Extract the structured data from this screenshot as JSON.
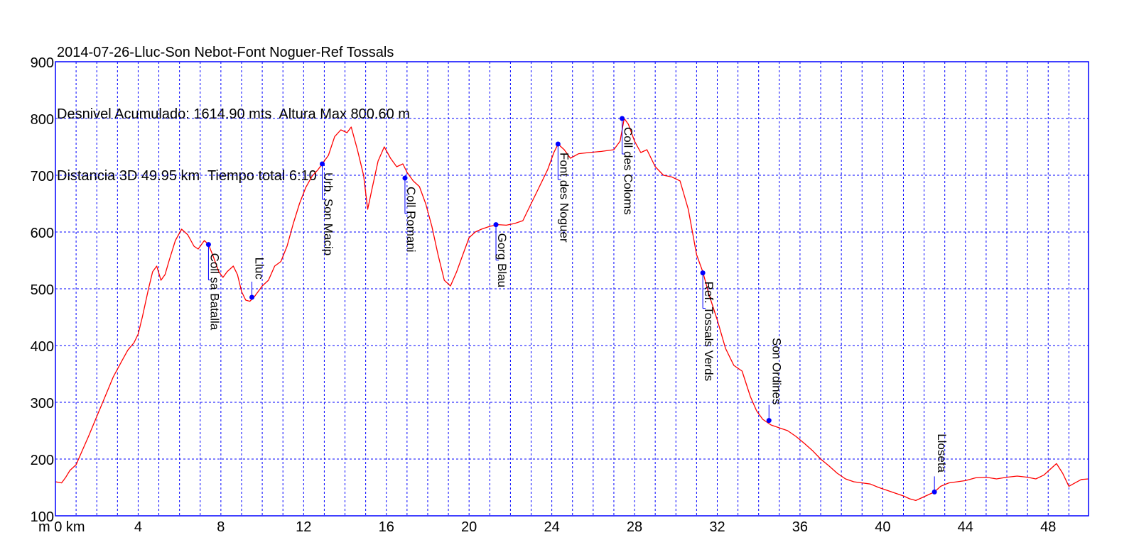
{
  "header": {
    "line1": "2014-07-26-Lluc-Son Nebot-Font Noguer-Ref Tossals",
    "line2": "Desnivel Acumulado: 1614.90 mts  Altura Max 800.60 m",
    "line3": "Distancia 3D 49.95 km  Tiempo total 6:10"
  },
  "colors": {
    "profile": "#ff0000",
    "frame": "#0000ff",
    "grid": "#0000ff",
    "waypoint": "#0000ff"
  },
  "chart_data": {
    "type": "line",
    "title": "2014-07-26-Lluc-Son Nebot-Font Noguer-Ref Tossals",
    "xlabel": "km",
    "ylabel": "m",
    "xlim": [
      0,
      49.95
    ],
    "ylim": [
      100,
      900
    ],
    "x_ticks": [
      0,
      4,
      8,
      12,
      16,
      20,
      24,
      28,
      32,
      36,
      40,
      44,
      48
    ],
    "x_tick_labels": [
      "m 0 km",
      "4",
      "8",
      "12",
      "16",
      "20",
      "24",
      "28",
      "32",
      "36",
      "40",
      "44",
      "48"
    ],
    "y_ticks": [
      100,
      200,
      300,
      400,
      500,
      600,
      700,
      800,
      900
    ],
    "grid_x_step": 1,
    "grid_y_step": 100,
    "grid": true,
    "series": [
      {
        "values_km_m": [
          [
            0,
            160
          ],
          [
            0.3,
            158
          ],
          [
            0.5,
            168
          ],
          [
            0.7,
            180
          ],
          [
            1.0,
            190
          ],
          [
            1.3,
            215
          ],
          [
            1.6,
            240
          ],
          [
            2.0,
            275
          ],
          [
            2.4,
            310
          ],
          [
            2.8,
            345
          ],
          [
            3.2,
            372
          ],
          [
            3.5,
            392
          ],
          [
            3.8,
            405
          ],
          [
            4.0,
            420
          ],
          [
            4.2,
            450
          ],
          [
            4.5,
            500
          ],
          [
            4.7,
            530
          ],
          [
            4.9,
            540
          ],
          [
            5.1,
            515
          ],
          [
            5.3,
            525
          ],
          [
            5.5,
            550
          ],
          [
            5.8,
            585
          ],
          [
            6.1,
            605
          ],
          [
            6.4,
            595
          ],
          [
            6.7,
            575
          ],
          [
            6.9,
            570
          ],
          [
            7.2,
            585
          ],
          [
            7.4,
            578
          ],
          [
            7.6,
            560
          ],
          [
            7.9,
            530
          ],
          [
            8.1,
            520
          ],
          [
            8.3,
            530
          ],
          [
            8.6,
            540
          ],
          [
            8.8,
            525
          ],
          [
            9.0,
            495
          ],
          [
            9.2,
            480
          ],
          [
            9.4,
            478
          ],
          [
            9.6,
            485
          ],
          [
            9.8,
            495
          ],
          [
            10.0,
            505
          ],
          [
            10.3,
            515
          ],
          [
            10.6,
            540
          ],
          [
            10.9,
            548
          ],
          [
            11.2,
            575
          ],
          [
            11.5,
            615
          ],
          [
            11.8,
            650
          ],
          [
            12.1,
            678
          ],
          [
            12.4,
            698
          ],
          [
            12.7,
            710
          ],
          [
            12.9,
            720
          ],
          [
            13.2,
            735
          ],
          [
            13.5,
            768
          ],
          [
            13.8,
            780
          ],
          [
            14.1,
            775
          ],
          [
            14.3,
            785
          ],
          [
            14.6,
            745
          ],
          [
            14.9,
            700
          ],
          [
            15.1,
            640
          ],
          [
            15.3,
            675
          ],
          [
            15.6,
            725
          ],
          [
            15.9,
            750
          ],
          [
            16.2,
            730
          ],
          [
            16.5,
            715
          ],
          [
            16.8,
            720
          ],
          [
            17.0,
            705
          ],
          [
            17.3,
            690
          ],
          [
            17.6,
            680
          ],
          [
            17.9,
            650
          ],
          [
            18.2,
            610
          ],
          [
            18.5,
            560
          ],
          [
            18.8,
            515
          ],
          [
            19.1,
            505
          ],
          [
            19.4,
            530
          ],
          [
            19.7,
            560
          ],
          [
            20.0,
            590
          ],
          [
            20.3,
            600
          ],
          [
            20.6,
            605
          ],
          [
            21.0,
            610
          ],
          [
            21.4,
            613
          ],
          [
            21.8,
            612
          ],
          [
            22.2,
            615
          ],
          [
            22.6,
            620
          ],
          [
            23.0,
            650
          ],
          [
            23.4,
            680
          ],
          [
            23.8,
            710
          ],
          [
            24.1,
            740
          ],
          [
            24.3,
            755
          ],
          [
            24.6,
            745
          ],
          [
            24.9,
            730
          ],
          [
            25.3,
            738
          ],
          [
            25.8,
            740
          ],
          [
            26.4,
            742
          ],
          [
            27.0,
            745
          ],
          [
            27.3,
            760
          ],
          [
            27.5,
            800
          ],
          [
            27.7,
            790
          ],
          [
            28.0,
            760
          ],
          [
            28.3,
            740
          ],
          [
            28.6,
            745
          ],
          [
            29.0,
            715
          ],
          [
            29.4,
            700
          ],
          [
            29.8,
            697
          ],
          [
            30.2,
            690
          ],
          [
            30.6,
            640
          ],
          [
            31.0,
            560
          ],
          [
            31.3,
            530
          ],
          [
            31.6,
            490
          ],
          [
            32.0,
            445
          ],
          [
            32.4,
            395
          ],
          [
            32.8,
            365
          ],
          [
            33.2,
            355
          ],
          [
            33.6,
            310
          ],
          [
            33.9,
            285
          ],
          [
            34.2,
            270
          ],
          [
            34.6,
            260
          ],
          [
            35.0,
            255
          ],
          [
            35.4,
            250
          ],
          [
            35.8,
            240
          ],
          [
            36.2,
            228
          ],
          [
            36.6,
            215
          ],
          [
            37.0,
            200
          ],
          [
            37.4,
            188
          ],
          [
            37.8,
            175
          ],
          [
            38.2,
            165
          ],
          [
            38.6,
            160
          ],
          [
            39.0,
            158
          ],
          [
            39.4,
            156
          ],
          [
            39.8,
            150
          ],
          [
            40.2,
            145
          ],
          [
            40.6,
            140
          ],
          [
            41.0,
            135
          ],
          [
            41.3,
            130
          ],
          [
            41.6,
            127
          ],
          [
            41.9,
            132
          ],
          [
            42.2,
            137
          ],
          [
            42.5,
            142
          ],
          [
            42.8,
            152
          ],
          [
            43.2,
            158
          ],
          [
            43.6,
            160
          ],
          [
            44.0,
            162
          ],
          [
            44.5,
            167
          ],
          [
            45.0,
            168
          ],
          [
            45.5,
            165
          ],
          [
            46.0,
            168
          ],
          [
            46.5,
            170
          ],
          [
            47.0,
            168
          ],
          [
            47.4,
            165
          ],
          [
            47.8,
            172
          ],
          [
            48.1,
            182
          ],
          [
            48.4,
            192
          ],
          [
            48.7,
            175
          ],
          [
            49.0,
            152
          ],
          [
            49.3,
            158
          ],
          [
            49.6,
            164
          ],
          [
            49.95,
            165
          ]
        ]
      }
    ],
    "waypoints": [
      {
        "name": "Coll sa Batalla",
        "x": 7.4,
        "y": 578
      },
      {
        "name": "Lluc",
        "x": 9.5,
        "y": 485
      },
      {
        "name": "Urb. Son Macip",
        "x": 12.9,
        "y": 720
      },
      {
        "name": "Coll Romani",
        "x": 16.9,
        "y": 695
      },
      {
        "name": "Gorg Blau",
        "x": 21.3,
        "y": 613
      },
      {
        "name": "Font des Noguer",
        "x": 24.3,
        "y": 755
      },
      {
        "name": "Coll des Coloms",
        "x": 27.4,
        "y": 800
      },
      {
        "name": "Ref. Tossals Verds",
        "x": 31.3,
        "y": 528
      },
      {
        "name": "Son Ordines",
        "x": 34.5,
        "y": 268
      },
      {
        "name": "Lloseta",
        "x": 42.5,
        "y": 142
      }
    ]
  }
}
